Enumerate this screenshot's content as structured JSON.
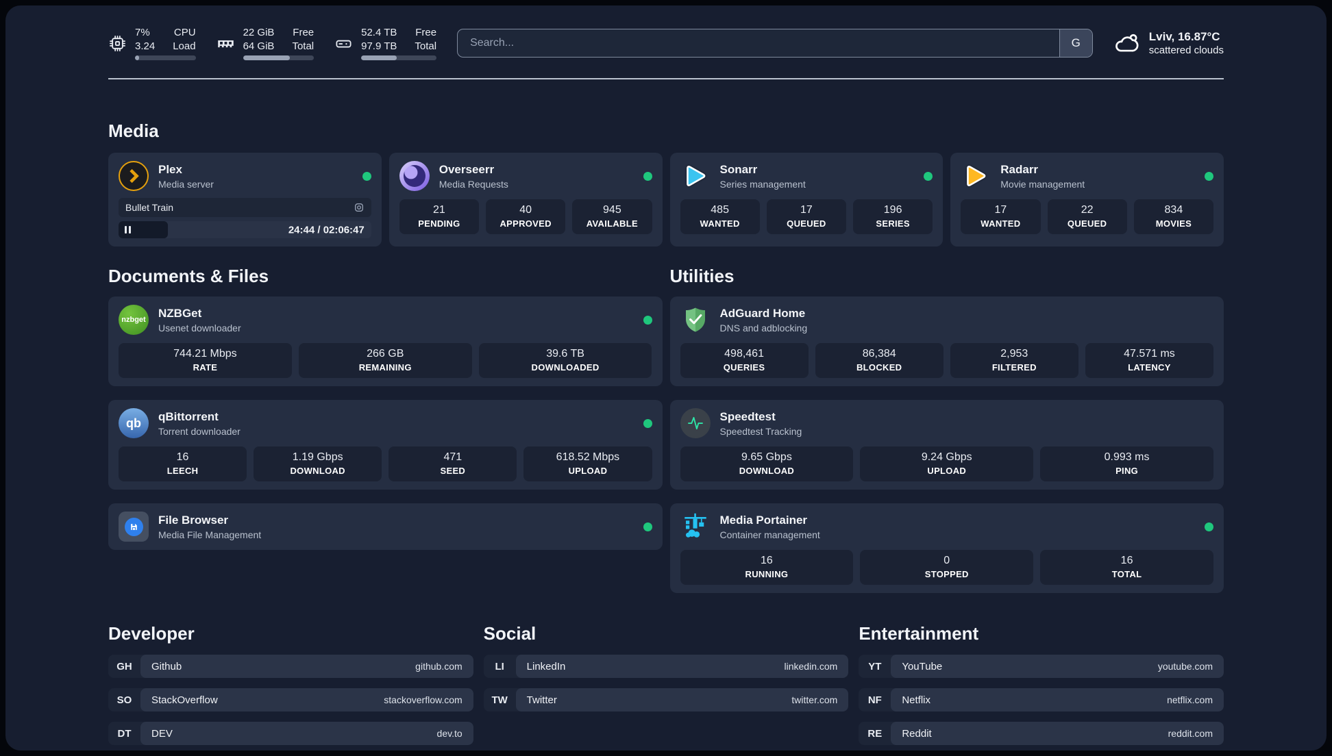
{
  "topbar": {
    "cpu": {
      "values": [
        "7%",
        "3.24"
      ],
      "labels": [
        "CPU",
        "Load"
      ],
      "progress_pct": 7
    },
    "memory": {
      "values": [
        "22 GiB",
        "64 GiB"
      ],
      "labels": [
        "Free",
        "Total"
      ],
      "progress_pct": 66
    },
    "disk": {
      "values": [
        "52.4 TB",
        "97.9 TB"
      ],
      "labels": [
        "Free",
        "Total"
      ],
      "progress_pct": 47
    },
    "search": {
      "placeholder": "Search...",
      "engine_button": "G"
    },
    "weather": {
      "location": "Lviv, 16.87°C",
      "condition": "scattered clouds"
    }
  },
  "media": {
    "title": "Media",
    "plex": {
      "name": "Plex",
      "subtitle": "Media server",
      "status": "online",
      "now_playing": "Bullet Train",
      "time": "24:44 / 02:06:47",
      "progress_pct": 19.5
    },
    "overseerr": {
      "name": "Overseerr",
      "subtitle": "Media Requests",
      "status": "online",
      "stats": [
        {
          "value": "21",
          "label": "PENDING"
        },
        {
          "value": "40",
          "label": "APPROVED"
        },
        {
          "value": "945",
          "label": "AVAILABLE"
        }
      ]
    },
    "sonarr": {
      "name": "Sonarr",
      "subtitle": "Series management",
      "status": "online",
      "stats": [
        {
          "value": "485",
          "label": "WANTED"
        },
        {
          "value": "17",
          "label": "QUEUED"
        },
        {
          "value": "196",
          "label": "SERIES"
        }
      ]
    },
    "radarr": {
      "name": "Radarr",
      "subtitle": "Movie management",
      "status": "online",
      "stats": [
        {
          "value": "17",
          "label": "WANTED"
        },
        {
          "value": "22",
          "label": "QUEUED"
        },
        {
          "value": "834",
          "label": "MOVIES"
        }
      ]
    }
  },
  "documents": {
    "title": "Documents & Files",
    "nzbget": {
      "name": "NZBGet",
      "subtitle": "Usenet downloader",
      "status": "online",
      "icon_text": "nzbget",
      "stats": [
        {
          "value": "744.21 Mbps",
          "label": "RATE"
        },
        {
          "value": "266 GB",
          "label": "REMAINING"
        },
        {
          "value": "39.6 TB",
          "label": "DOWNLOADED"
        }
      ]
    },
    "qbittorrent": {
      "name": "qBittorrent",
      "subtitle": "Torrent downloader",
      "status": "online",
      "icon_text": "qb",
      "stats": [
        {
          "value": "16",
          "label": "LEECH"
        },
        {
          "value": "1.19 Gbps",
          "label": "DOWNLOAD"
        },
        {
          "value": "471",
          "label": "SEED"
        },
        {
          "value": "618.52 Mbps",
          "label": "UPLOAD"
        }
      ]
    },
    "filebrowser": {
      "name": "File Browser",
      "subtitle": "Media File Management",
      "status": "online"
    }
  },
  "utilities": {
    "title": "Utilities",
    "adguard": {
      "name": "AdGuard Home",
      "subtitle": "DNS and adblocking",
      "stats": [
        {
          "value": "498,461",
          "label": "QUERIES"
        },
        {
          "value": "86,384",
          "label": "BLOCKED"
        },
        {
          "value": "2,953",
          "label": "FILTERED"
        },
        {
          "value": "47.571 ms",
          "label": "LATENCY"
        }
      ]
    },
    "speedtest": {
      "name": "Speedtest",
      "subtitle": "Speedtest Tracking",
      "stats": [
        {
          "value": "9.65 Gbps",
          "label": "DOWNLOAD"
        },
        {
          "value": "9.24 Gbps",
          "label": "UPLOAD"
        },
        {
          "value": "0.993 ms",
          "label": "PING"
        }
      ]
    },
    "portainer": {
      "name": "Media Portainer",
      "subtitle": "Container management",
      "status": "online",
      "stats": [
        {
          "value": "16",
          "label": "RUNNING"
        },
        {
          "value": "0",
          "label": "STOPPED"
        },
        {
          "value": "16",
          "label": "TOTAL"
        }
      ]
    }
  },
  "links": {
    "developer": {
      "title": "Developer",
      "items": [
        {
          "abbr": "GH",
          "name": "Github",
          "url": "github.com"
        },
        {
          "abbr": "SO",
          "name": "StackOverflow",
          "url": "stackoverflow.com"
        },
        {
          "abbr": "DT",
          "name": "DEV",
          "url": "dev.to"
        }
      ]
    },
    "social": {
      "title": "Social",
      "items": [
        {
          "abbr": "LI",
          "name": "LinkedIn",
          "url": "linkedin.com"
        },
        {
          "abbr": "TW",
          "name": "Twitter",
          "url": "twitter.com"
        }
      ]
    },
    "entertainment": {
      "title": "Entertainment",
      "items": [
        {
          "abbr": "YT",
          "name": "YouTube",
          "url": "youtube.com"
        },
        {
          "abbr": "NF",
          "name": "Netflix",
          "url": "netflix.com"
        },
        {
          "abbr": "RE",
          "name": "Reddit",
          "url": "reddit.com"
        }
      ]
    }
  },
  "colors": {
    "status_online": "#1fc77d",
    "plex_gold": "#e5a00d",
    "sonarr_blue": "#3bc4f0",
    "radarr_yellow": "#ffb822",
    "adguard_green": "#68bc71",
    "portainer_blue": "#25c1f1"
  }
}
